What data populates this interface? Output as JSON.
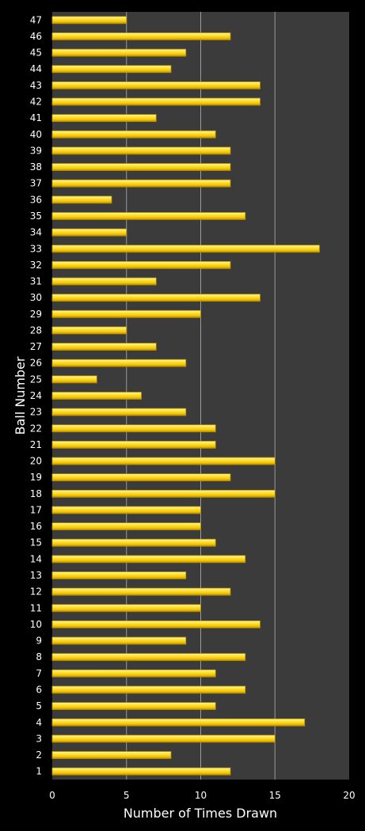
{
  "chart_data": {
    "type": "bar",
    "orientation": "horizontal",
    "xlabel": "Number of Times Drawn",
    "ylabel": "Ball Number",
    "xlim": [
      0,
      20
    ],
    "xticks": [
      "0",
      "5",
      "10",
      "15",
      "20"
    ],
    "grid": "vertical",
    "colors": {
      "background": "#000000",
      "plot_area": "#3b3b3b",
      "bar": "#ffd700",
      "bar_edge": "#b89000",
      "gridline": "#9a9a9a",
      "text": "#ffffff"
    },
    "categories": [
      "1",
      "2",
      "3",
      "4",
      "5",
      "6",
      "7",
      "8",
      "9",
      "10",
      "11",
      "12",
      "13",
      "14",
      "15",
      "16",
      "17",
      "18",
      "19",
      "20",
      "21",
      "22",
      "23",
      "24",
      "25",
      "26",
      "27",
      "28",
      "29",
      "30",
      "31",
      "32",
      "33",
      "34",
      "35",
      "36",
      "37",
      "38",
      "39",
      "40",
      "41",
      "42",
      "43",
      "44",
      "45",
      "46",
      "47"
    ],
    "values": [
      12,
      8,
      15,
      17,
      11,
      13,
      11,
      13,
      9,
      14,
      10,
      12,
      9,
      13,
      11,
      10,
      10,
      15,
      12,
      15,
      11,
      11,
      9,
      6,
      3,
      9,
      7,
      5,
      10,
      14,
      7,
      12,
      18,
      5,
      13,
      4,
      12,
      12,
      12,
      11,
      7,
      14,
      14,
      8,
      9,
      12,
      5
    ]
  }
}
